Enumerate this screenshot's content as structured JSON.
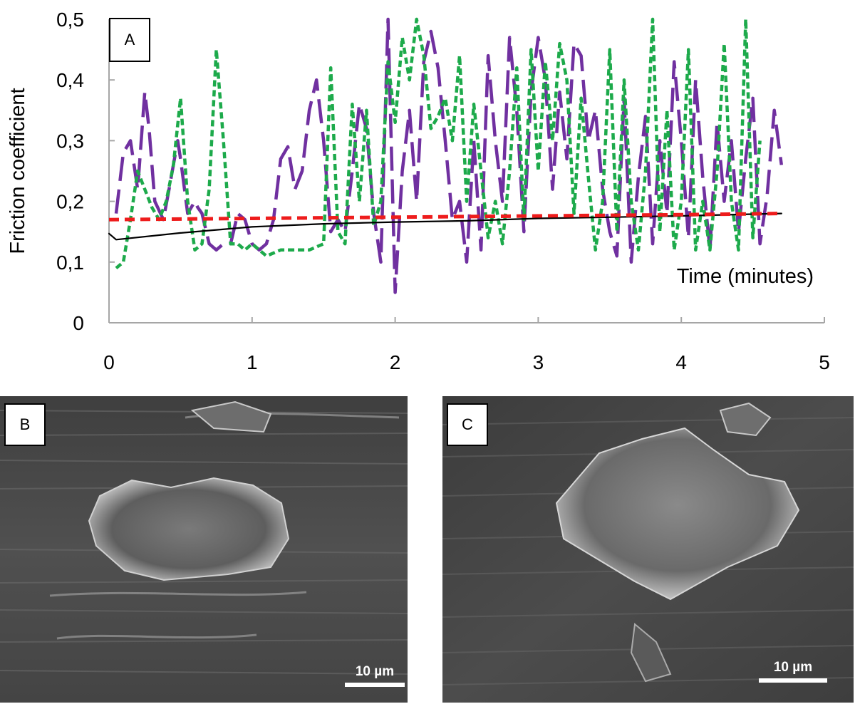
{
  "chart_data": {
    "type": "line",
    "panel_label": "A",
    "xlabel": "Time (minutes)",
    "ylabel": "Friction coefficient",
    "xlim": [
      0,
      5
    ],
    "ylim": [
      0,
      0.5
    ],
    "x_ticks": [
      0,
      1,
      2,
      3,
      4,
      5
    ],
    "x_tick_labels": [
      "0",
      "1",
      "2",
      "3",
      "4",
      "5"
    ],
    "y_ticks": [
      0,
      0.1,
      0.2,
      0.3,
      0.4,
      0.5
    ],
    "y_tick_labels": [
      "0",
      "0,1",
      "0,2",
      "0,3",
      "0,4",
      "0,5"
    ],
    "grid": false,
    "series": [
      {
        "name": "black solid",
        "color": "#000000",
        "style": "solid",
        "x": [
          0,
          0.05,
          0.5,
          1,
          1.5,
          2,
          2.5,
          3,
          3.5,
          4,
          4.5,
          4.7
        ],
        "y": [
          0.147,
          0.137,
          0.148,
          0.158,
          0.163,
          0.166,
          0.168,
          0.172,
          0.174,
          0.176,
          0.179,
          0.18
        ]
      },
      {
        "name": "red dashed",
        "color": "#ee1c1c",
        "style": "dashed",
        "x": [
          0,
          1,
          2,
          3,
          4,
          4.7
        ],
        "y": [
          0.17,
          0.172,
          0.174,
          0.176,
          0.178,
          0.18
        ]
      },
      {
        "name": "purple long-dash",
        "color": "#7030a0",
        "style": "longdash",
        "x": [
          0.05,
          0.1,
          0.15,
          0.2,
          0.25,
          0.28,
          0.32,
          0.38,
          0.42,
          0.48,
          0.5,
          0.55,
          0.6,
          0.62,
          0.65,
          0.7,
          0.75,
          0.8,
          0.85,
          0.9,
          0.95,
          1.0,
          1.05,
          1.1,
          1.15,
          1.2,
          1.25,
          1.3,
          1.35,
          1.4,
          1.45,
          1.5,
          1.55,
          1.6,
          1.65,
          1.7,
          1.75,
          1.8,
          1.85,
          1.9,
          1.95,
          2.0,
          2.05,
          2.1,
          2.15,
          2.2,
          2.25,
          2.3,
          2.35,
          2.4,
          2.45,
          2.5,
          2.55,
          2.6,
          2.65,
          2.7,
          2.75,
          2.8,
          2.85,
          2.9,
          2.95,
          3.0,
          3.05,
          3.1,
          3.15,
          3.2,
          3.25,
          3.3,
          3.35,
          3.4,
          3.45,
          3.5,
          3.55,
          3.6,
          3.65,
          3.7,
          3.75,
          3.8,
          3.85,
          3.9,
          3.95,
          4.0,
          4.05,
          4.1,
          4.15,
          4.2,
          4.25,
          4.3,
          4.35,
          4.4,
          4.45,
          4.5,
          4.55,
          4.6,
          4.65,
          4.7
        ],
        "y": [
          0.18,
          0.28,
          0.3,
          0.22,
          0.38,
          0.32,
          0.2,
          0.17,
          0.22,
          0.3,
          0.27,
          0.18,
          0.2,
          0.19,
          0.18,
          0.13,
          0.12,
          0.13,
          0.13,
          0.18,
          0.17,
          0.13,
          0.12,
          0.13,
          0.17,
          0.27,
          0.29,
          0.22,
          0.25,
          0.35,
          0.4,
          0.3,
          0.15,
          0.17,
          0.15,
          0.25,
          0.36,
          0.32,
          0.18,
          0.1,
          0.5,
          0.05,
          0.25,
          0.35,
          0.2,
          0.43,
          0.48,
          0.42,
          0.3,
          0.17,
          0.2,
          0.1,
          0.3,
          0.12,
          0.44,
          0.3,
          0.2,
          0.47,
          0.35,
          0.15,
          0.38,
          0.47,
          0.4,
          0.22,
          0.38,
          0.27,
          0.46,
          0.44,
          0.3,
          0.35,
          0.22,
          0.15,
          0.11,
          0.37,
          0.1,
          0.24,
          0.34,
          0.13,
          0.3,
          0.18,
          0.43,
          0.3,
          0.14,
          0.4,
          0.24,
          0.12,
          0.33,
          0.2,
          0.3,
          0.15,
          0.27,
          0.37,
          0.13,
          0.21,
          0.35,
          0.26
        ]
      },
      {
        "name": "green dotted",
        "color": "#1daa4b",
        "style": "dotted",
        "x": [
          0.05,
          0.1,
          0.15,
          0.2,
          0.25,
          0.3,
          0.35,
          0.4,
          0.45,
          0.5,
          0.55,
          0.6,
          0.65,
          0.7,
          0.75,
          0.8,
          0.85,
          0.9,
          0.95,
          1.0,
          1.1,
          1.2,
          1.3,
          1.4,
          1.5,
          1.55,
          1.6,
          1.65,
          1.7,
          1.75,
          1.8,
          1.85,
          1.9,
          1.95,
          2.0,
          2.05,
          2.1,
          2.15,
          2.2,
          2.25,
          2.3,
          2.35,
          2.4,
          2.45,
          2.5,
          2.55,
          2.6,
          2.65,
          2.7,
          2.75,
          2.8,
          2.85,
          2.9,
          2.95,
          3.0,
          3.05,
          3.1,
          3.15,
          3.2,
          3.25,
          3.3,
          3.35,
          3.4,
          3.45,
          3.5,
          3.55,
          3.6,
          3.65,
          3.7,
          3.75,
          3.8,
          3.85,
          3.9,
          3.95,
          4.0,
          4.05,
          4.1,
          4.15,
          4.2,
          4.25,
          4.3,
          4.35,
          4.4,
          4.45,
          4.5,
          4.55
        ],
        "y": [
          0.09,
          0.1,
          0.17,
          0.25,
          0.22,
          0.19,
          0.17,
          0.2,
          0.26,
          0.37,
          0.2,
          0.12,
          0.13,
          0.22,
          0.45,
          0.3,
          0.13,
          0.13,
          0.12,
          0.13,
          0.11,
          0.12,
          0.12,
          0.12,
          0.13,
          0.42,
          0.15,
          0.13,
          0.36,
          0.2,
          0.35,
          0.16,
          0.2,
          0.43,
          0.33,
          0.47,
          0.4,
          0.5,
          0.44,
          0.32,
          0.34,
          0.37,
          0.3,
          0.44,
          0.2,
          0.36,
          0.25,
          0.14,
          0.2,
          0.13,
          0.25,
          0.42,
          0.17,
          0.45,
          0.25,
          0.43,
          0.3,
          0.46,
          0.4,
          0.18,
          0.37,
          0.24,
          0.12,
          0.2,
          0.45,
          0.15,
          0.4,
          0.2,
          0.12,
          0.25,
          0.5,
          0.15,
          0.35,
          0.12,
          0.2,
          0.45,
          0.12,
          0.2,
          0.12,
          0.25,
          0.46,
          0.2,
          0.12,
          0.5,
          0.14,
          0.3
        ]
      }
    ]
  },
  "panels": {
    "b": {
      "label": "B",
      "scalebar": "10 µm"
    },
    "c": {
      "label": "C",
      "scalebar": "10 µm"
    }
  }
}
